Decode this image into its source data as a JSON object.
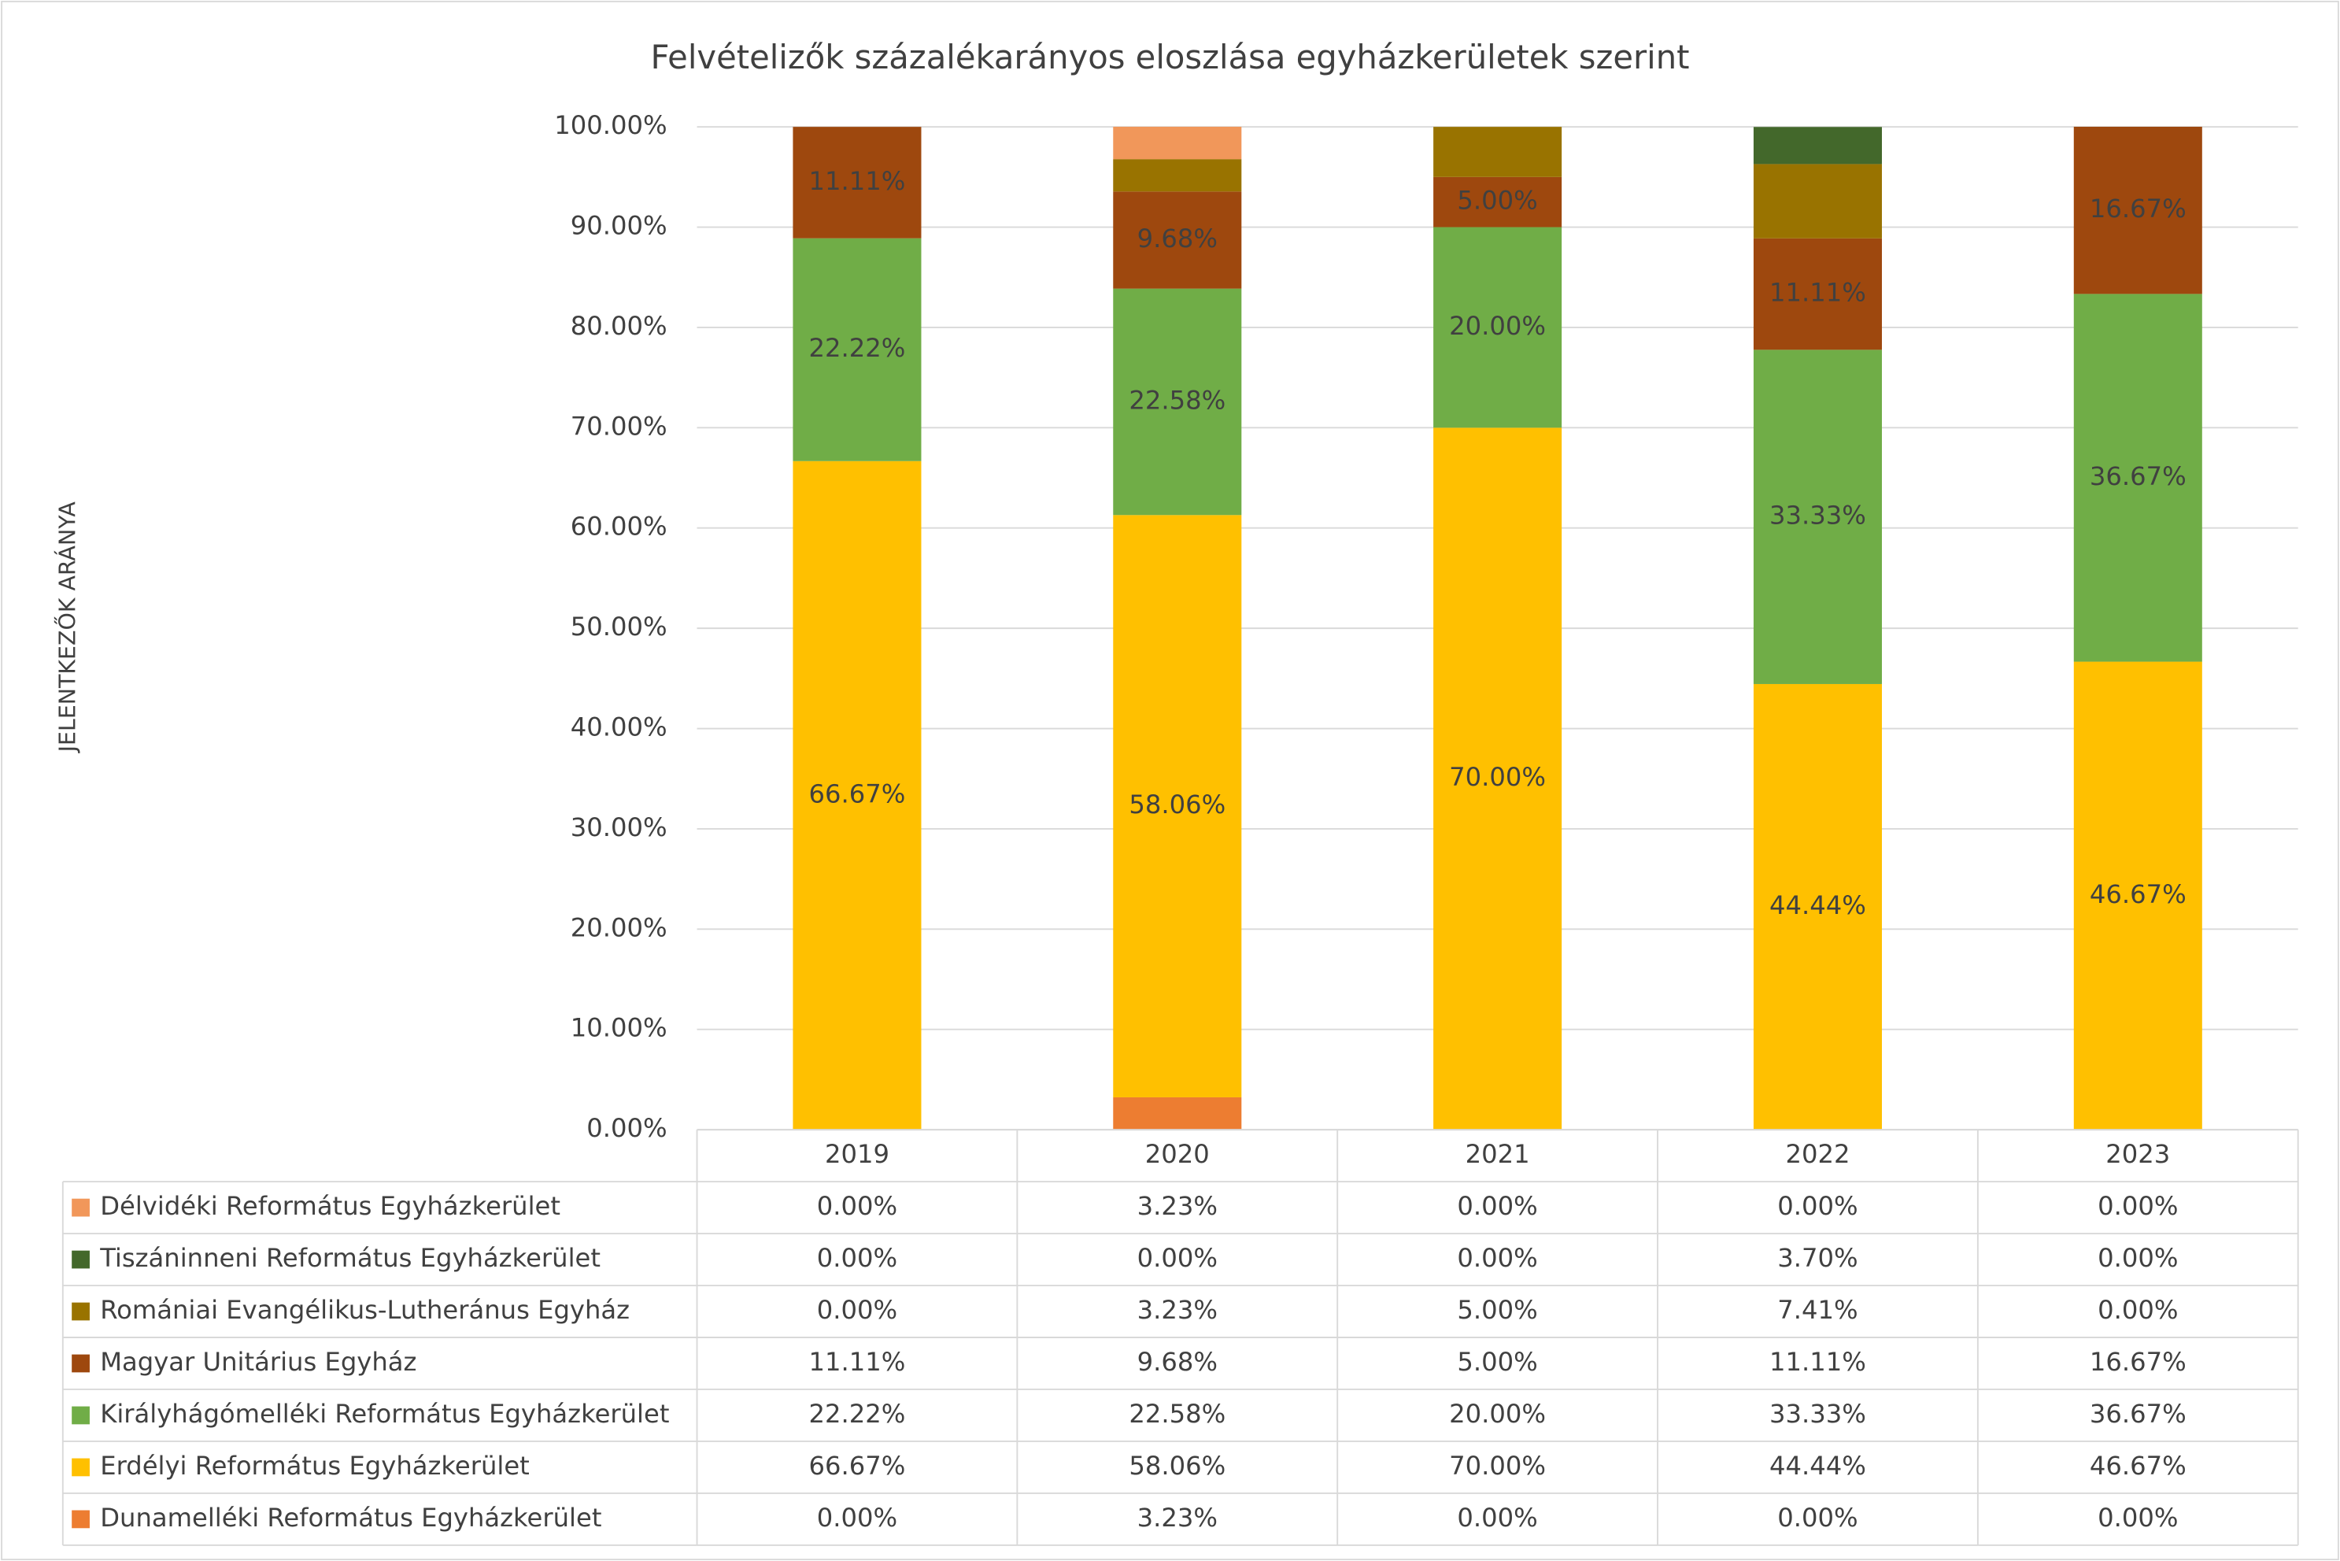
{
  "chart_data": {
    "type": "stacked_bar",
    "title": "Felvételizők százalékarányos eloszlása egyházkerületek szerint",
    "y_label": "JELENTKEZŐK ARÁNYA",
    "categories": [
      "2019",
      "2020",
      "2021",
      "2022",
      "2023"
    ],
    "ylim": [
      0,
      100
    ],
    "yticks": [
      {
        "value": 0,
        "label": "0.00%"
      },
      {
        "value": 10,
        "label": "10.00%"
      },
      {
        "value": 20,
        "label": "20.00%"
      },
      {
        "value": 30,
        "label": "30.00%"
      },
      {
        "value": 40,
        "label": "40.00%"
      },
      {
        "value": 50,
        "label": "50.00%"
      },
      {
        "value": 60,
        "label": "60.00%"
      },
      {
        "value": 70,
        "label": "70.00%"
      },
      {
        "value": 80,
        "label": "80.00%"
      },
      {
        "value": 90,
        "label": "90.00%"
      },
      {
        "value": 100,
        "label": "100.00%"
      }
    ],
    "grid": true,
    "series": [
      {
        "name": "Dunamelléki Református Egyházkerület",
        "color": "#ed7d31",
        "data_labels": false,
        "values": [
          0,
          3.23,
          0,
          0,
          0
        ],
        "value_labels": [
          "0.00%",
          "3.23%",
          "0.00%",
          "0.00%",
          "0.00%"
        ]
      },
      {
        "name": "Erdélyi Református Egyházkerület",
        "color": "#ffc000",
        "data_labels": true,
        "values": [
          66.67,
          58.06,
          70,
          44.44,
          46.67
        ],
        "value_labels": [
          "66.67%",
          "58.06%",
          "70.00%",
          "44.44%",
          "46.67%"
        ]
      },
      {
        "name": "Királyhágómelléki Református Egyházkerület",
        "color": "#70ad47",
        "data_labels": true,
        "values": [
          22.22,
          22.58,
          20,
          33.33,
          36.67
        ],
        "value_labels": [
          "22.22%",
          "22.58%",
          "20.00%",
          "33.33%",
          "36.67%"
        ]
      },
      {
        "name": "Magyar Unitárius Egyház",
        "color": "#9e480e",
        "data_labels": true,
        "values": [
          11.11,
          9.68,
          5,
          11.11,
          16.67
        ],
        "value_labels": [
          "11.11%",
          "9.68%",
          "5.00%",
          "11.11%",
          "16.67%"
        ]
      },
      {
        "name": "Romániai Evangélikus-Lutheránus Egyház",
        "color": "#997300",
        "data_labels": false,
        "values": [
          0,
          3.23,
          5,
          7.41,
          0
        ],
        "value_labels": [
          "0.00%",
          "3.23%",
          "5.00%",
          "7.41%",
          "0.00%"
        ]
      },
      {
        "name": "Tiszáninneni Református Egyházkerület",
        "color": "#43682b",
        "data_labels": false,
        "values": [
          0,
          0,
          0,
          3.7,
          0
        ],
        "value_labels": [
          "0.00%",
          "0.00%",
          "0.00%",
          "3.70%",
          "0.00%"
        ]
      },
      {
        "name": "Délvidéki Református Egyházkerület",
        "color": "#f1975a",
        "data_labels": false,
        "values": [
          0,
          3.23,
          0,
          0,
          0
        ],
        "value_labels": [
          "0.00%",
          "3.23%",
          "0.00%",
          "0.00%",
          "0.00%"
        ]
      }
    ]
  }
}
